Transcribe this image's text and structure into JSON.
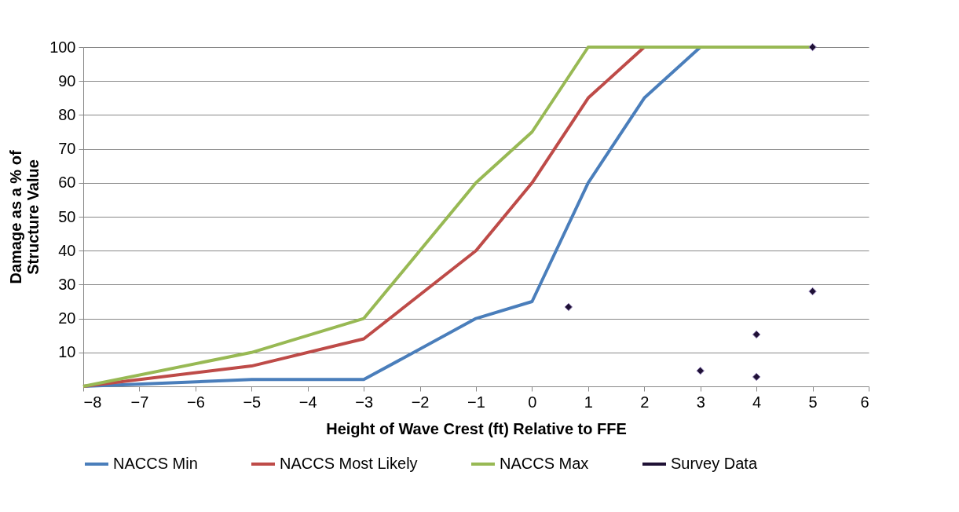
{
  "chart_data": {
    "type": "line",
    "xlabel": "Height of Wave Crest (ft) Relative to FFE",
    "ylabel": "Damage as a % of Structure Value",
    "xlim": [
      -8,
      6
    ],
    "xticks": [
      -8,
      -7,
      -6,
      -5,
      -4,
      -3,
      -2,
      -1,
      0,
      1,
      2,
      3,
      4,
      5,
      6
    ],
    "ylim": [
      0,
      100
    ],
    "yticks": [
      10,
      20,
      30,
      40,
      50,
      60,
      70,
      80,
      90,
      100
    ],
    "grid": "y",
    "legend": "bottom",
    "line_style": "solid",
    "series": [
      {
        "name": "NACCS Min",
        "color": "#4a7ebb",
        "x": [
          -8,
          -5,
          -3,
          -1,
          0,
          1,
          2,
          3,
          5
        ],
        "values": [
          0,
          2,
          2,
          20,
          25,
          60,
          85,
          100,
          100
        ]
      },
      {
        "name": "NACCS Most Likely",
        "color": "#be4b48",
        "x": [
          -8,
          -5,
          -3,
          -1,
          0,
          1,
          2,
          5
        ],
        "values": [
          0,
          6,
          14,
          40,
          60,
          85,
          100,
          100
        ]
      },
      {
        "name": "NACCS Max",
        "color": "#98b954",
        "x": [
          -8,
          -5,
          -3,
          -1,
          0,
          1,
          5
        ],
        "values": [
          0,
          10,
          20,
          60,
          75,
          100,
          100
        ]
      },
      {
        "name": "Survey Data",
        "type": "scatter",
        "marker": "diamond",
        "color": "#1f1135",
        "x": [
          0.65,
          3,
          4,
          4,
          5,
          5
        ],
        "values": [
          23.4,
          4.6,
          15.3,
          2.8,
          28,
          100
        ]
      }
    ]
  }
}
